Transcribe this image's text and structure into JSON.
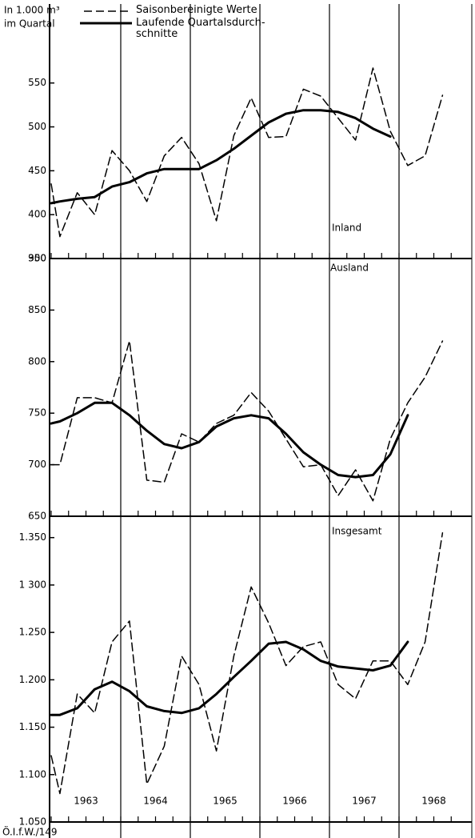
{
  "unit_label": "In 1.000 m³",
  "unit_label_2": "im Quartal",
  "footer": "Ö.I.f.W./149",
  "year_lines": [
    1964,
    1965,
    1966,
    1967,
    1968
  ],
  "chart_data": [
    {
      "type": "line",
      "title": "Inland",
      "x": [
        1963.0,
        1963.125,
        1963.375,
        1963.625,
        1963.875,
        1964.125,
        1964.375,
        1964.625,
        1964.875,
        1965.125,
        1965.375,
        1965.625,
        1965.875,
        1966.125,
        1966.375,
        1966.625,
        1966.875,
        1967.125,
        1967.375,
        1967.625,
        1967.875,
        1968.125,
        1968.375,
        1968.625
      ],
      "series": [
        {
          "name": "Saisonbereinigte Werte",
          "color": "#000000",
          "dashed": true,
          "values": [
            435,
            375,
            425,
            400,
            473,
            450,
            415,
            467,
            488,
            458,
            393,
            490,
            533,
            488,
            489,
            543,
            535,
            510,
            485,
            567,
            495,
            456,
            467,
            536
          ]
        },
        {
          "name": "Laufende Quartalsdurch­schnitte",
          "color": "#000000",
          "dashed": false,
          "values": [
            413,
            415,
            418,
            420,
            432,
            437,
            447,
            452,
            452,
            452,
            462,
            475,
            490,
            505,
            515,
            519,
            519,
            517,
            510,
            498,
            489,
            null,
            null,
            null
          ]
        }
      ],
      "xlim": [
        1963,
        1969
      ],
      "xticks": [
        1963,
        1963.25,
        1963.5,
        1963.75,
        1964,
        1964.25,
        1964.5,
        1964.75,
        1965,
        1965.25,
        1965.5,
        1965.75,
        1966,
        1966.25,
        1966.5,
        1966.75,
        1967,
        1967.25,
        1967.5,
        1967.75,
        1968,
        1968.25,
        1968.5,
        1968.75
      ],
      "ylim": [
        350,
        640
      ],
      "yticks": [
        350,
        400,
        450,
        500,
        550
      ]
    },
    {
      "type": "line",
      "title": "Ausland",
      "x": [
        1963.0,
        1963.125,
        1963.375,
        1963.625,
        1963.875,
        1964.125,
        1964.375,
        1964.625,
        1964.875,
        1965.125,
        1965.375,
        1965.625,
        1965.875,
        1966.125,
        1966.375,
        1966.625,
        1966.875,
        1967.125,
        1967.375,
        1967.625,
        1967.875,
        1968.125,
        1968.375,
        1968.625
      ],
      "series": [
        {
          "color": "#000000",
          "dashed": true,
          "values": [
            700,
            700,
            765,
            765,
            760,
            820,
            685,
            683,
            730,
            722,
            740,
            748,
            770,
            752,
            725,
            698,
            700,
            670,
            695,
            665,
            725,
            760,
            785,
            820
          ]
        },
        {
          "color": "#000000",
          "dashed": false,
          "values": [
            740,
            742,
            750,
            760,
            760,
            748,
            733,
            720,
            716,
            722,
            737,
            745,
            748,
            745,
            730,
            712,
            700,
            690,
            688,
            690,
            710,
            748,
            null,
            null
          ]
        }
      ],
      "xlim": [
        1963,
        1969
      ],
      "xticks": [
        1963,
        1963.25,
        1963.5,
        1963.75,
        1964,
        1964.25,
        1964.5,
        1964.75,
        1965,
        1965.25,
        1965.5,
        1965.75,
        1966,
        1966.25,
        1966.5,
        1966.75,
        1967,
        1967.25,
        1967.5,
        1967.75,
        1968,
        1968.25,
        1968.5,
        1968.75
      ],
      "ylim": [
        650,
        900
      ],
      "yticks": [
        650,
        700,
        750,
        800,
        850,
        900
      ]
    },
    {
      "type": "line",
      "title": "Insgesamt",
      "x": [
        1963.0,
        1963.125,
        1963.375,
        1963.625,
        1963.875,
        1964.125,
        1964.375,
        1964.625,
        1964.875,
        1965.125,
        1965.375,
        1965.625,
        1965.875,
        1966.125,
        1966.375,
        1966.625,
        1966.875,
        1967.125,
        1967.375,
        1967.625,
        1967.875,
        1968.125,
        1968.375,
        1968.625
      ],
      "series": [
        {
          "color": "#000000",
          "dashed": true,
          "values": [
            1120,
            1080,
            1185,
            1165,
            1240,
            1262,
            1090,
            1130,
            1225,
            1195,
            1125,
            1225,
            1298,
            1260,
            1215,
            1235,
            1240,
            1195,
            1180,
            1220,
            1220,
            1195,
            1240,
            1355
          ]
        },
        {
          "color": "#000000",
          "dashed": false,
          "values": [
            1163,
            1163,
            1170,
            1190,
            1198,
            1188,
            1172,
            1167,
            1165,
            1170,
            1185,
            1203,
            1220,
            1238,
            1240,
            1232,
            1220,
            1214,
            1212,
            1210,
            1215,
            1240,
            null,
            null
          ]
        }
      ],
      "xlim": [
        1963,
        1969
      ],
      "xticks": [
        1963,
        1963.25,
        1963.5,
        1963.75,
        1964,
        1964.25,
        1964.5,
        1964.75,
        1965,
        1965.25,
        1965.5,
        1965.75,
        1966,
        1966.25,
        1966.5,
        1966.75,
        1967,
        1967.25,
        1967.5,
        1967.75,
        1968,
        1968.25,
        1968.5,
        1968.75
      ],
      "xtick_labels": [
        {
          "value": 1963.5,
          "label": "1963"
        },
        {
          "value": 1964.5,
          "label": "1964"
        },
        {
          "value": 1965.5,
          "label": "1965"
        },
        {
          "value": 1966.5,
          "label": "1966"
        },
        {
          "value": 1967.5,
          "label": "1967"
        },
        {
          "value": 1968.5,
          "label": "1968"
        }
      ],
      "ylim": [
        1050,
        1370
      ],
      "yticks": [
        {
          "value": 1050,
          "label": "1.050"
        },
        {
          "value": 1100,
          "label": "1.100"
        },
        {
          "value": 1150,
          "label": "1.150"
        },
        {
          "value": 1200,
          "label": "1.200"
        },
        {
          "value": 1250,
          "label": "1.250"
        },
        {
          "value": 1300,
          "label": "1 300"
        },
        {
          "value": 1350,
          "label": "1.350"
        }
      ]
    }
  ]
}
